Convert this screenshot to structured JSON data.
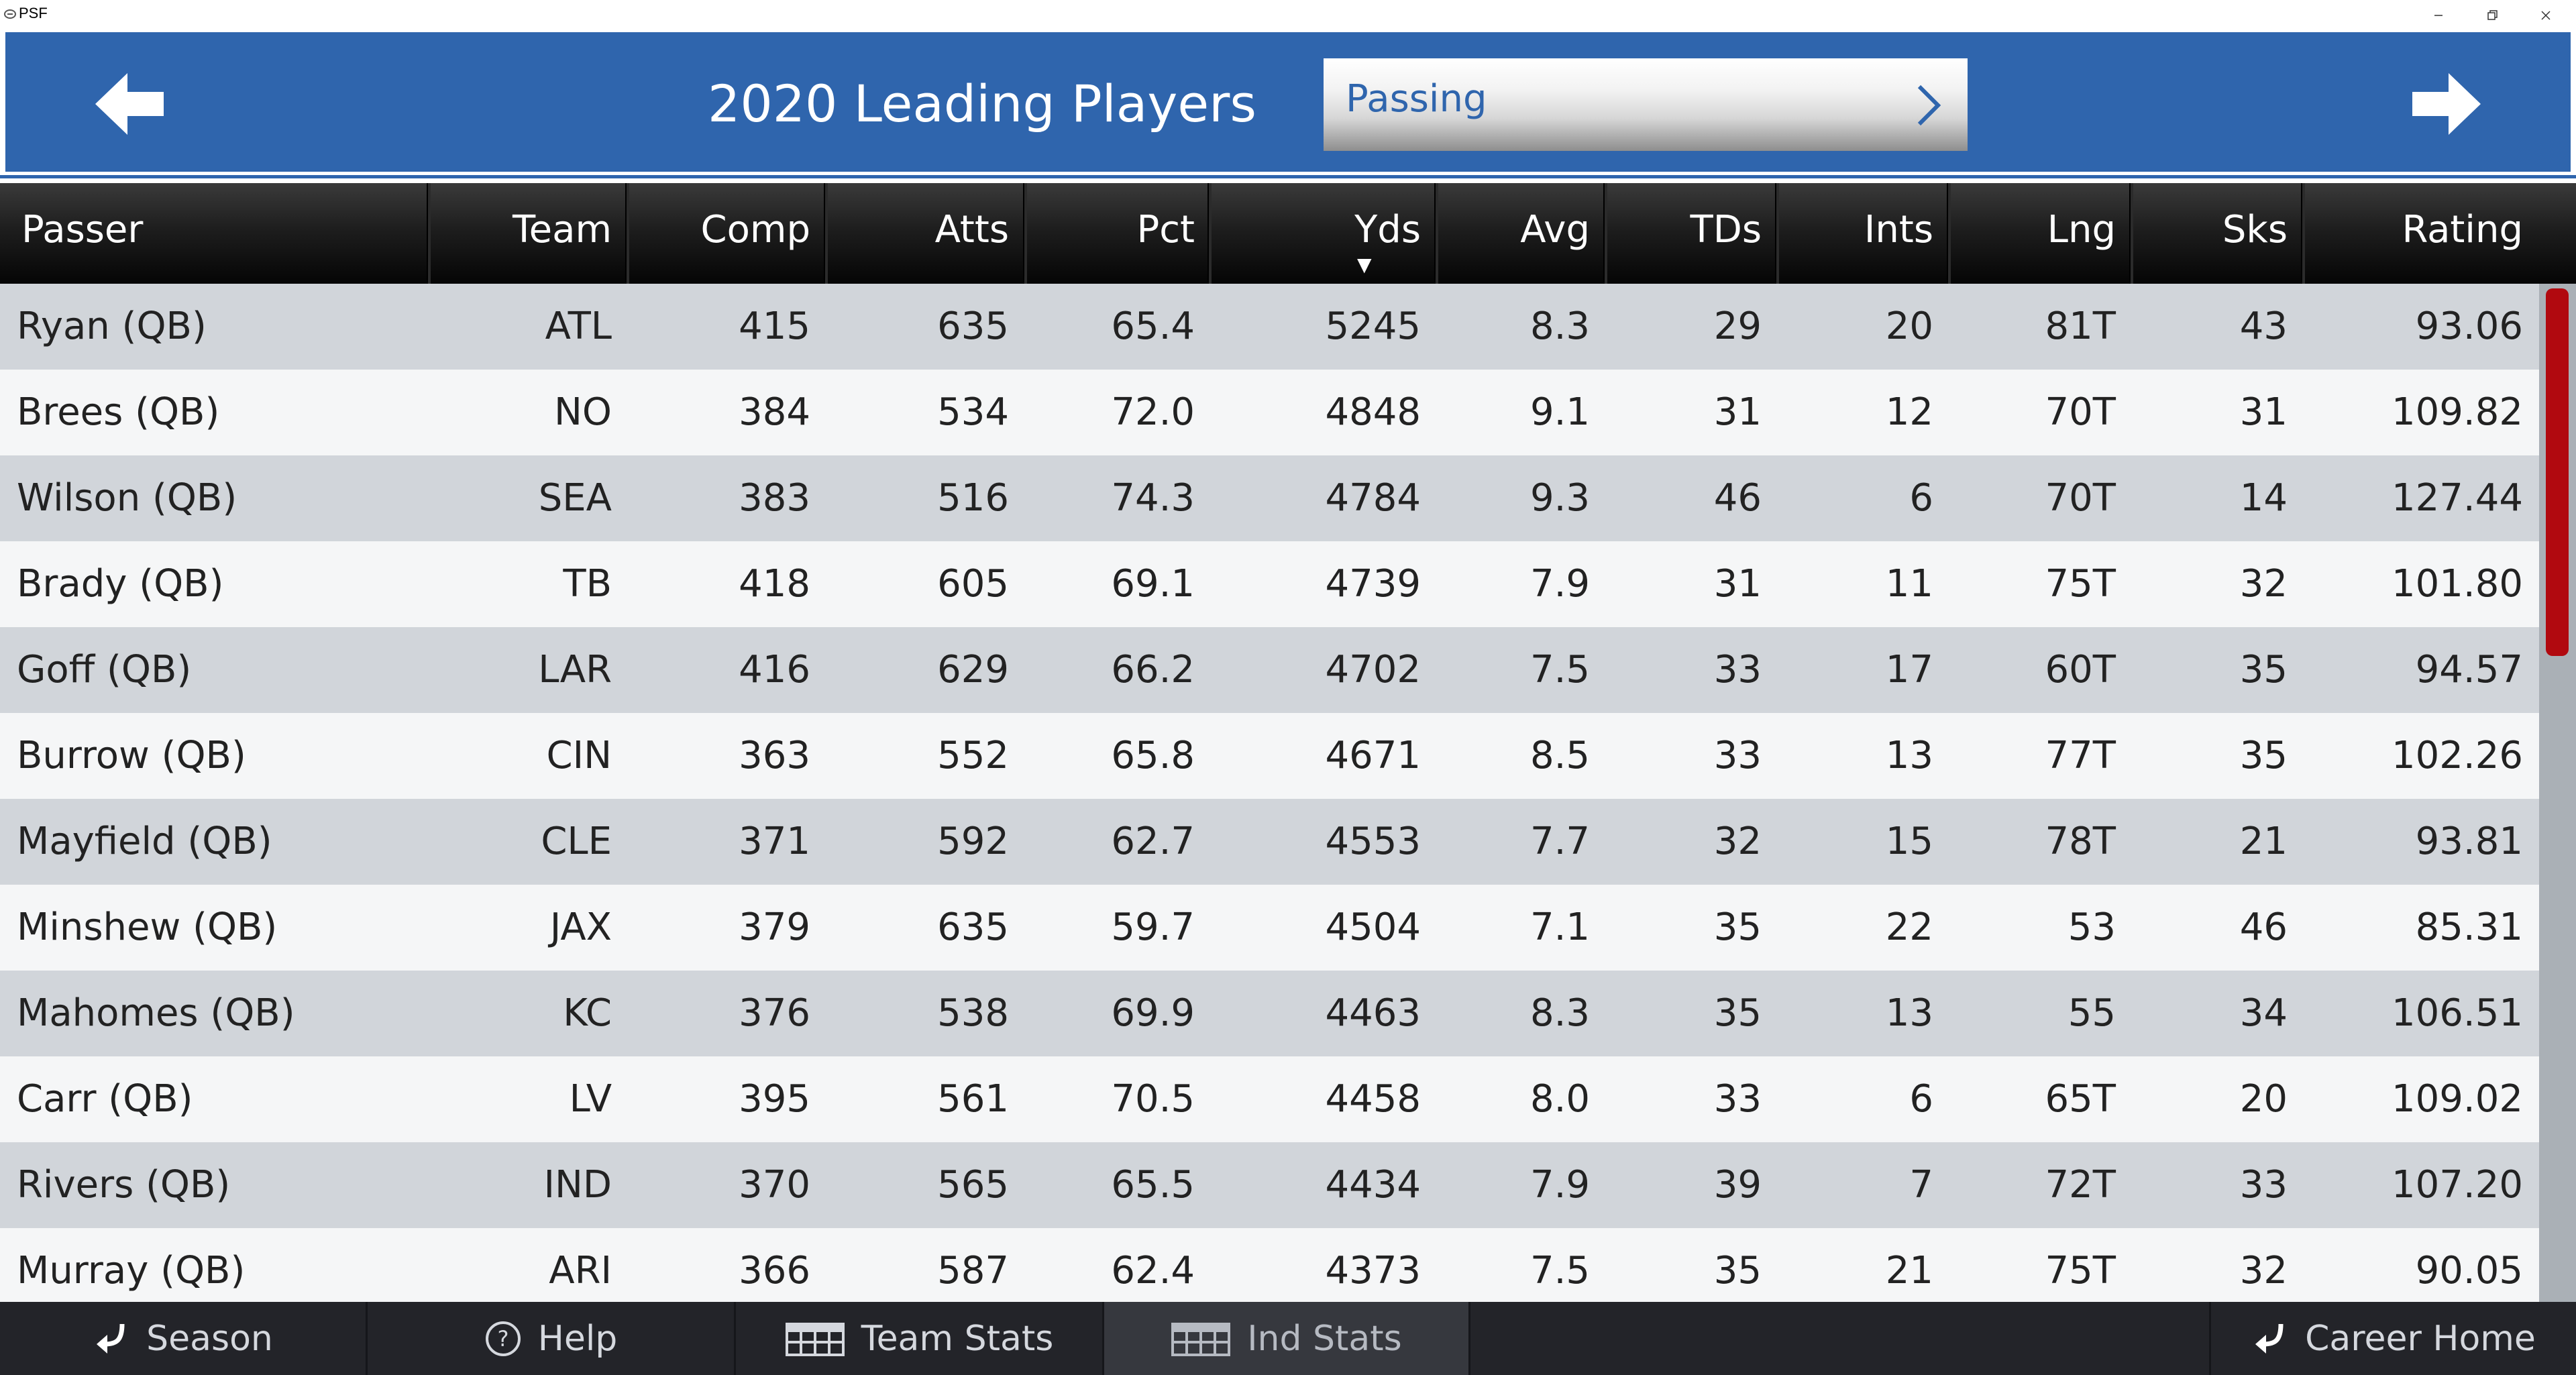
{
  "window": {
    "title": "PSF",
    "controls": [
      "minimize-icon",
      "restore-icon",
      "close-icon"
    ]
  },
  "header": {
    "title": "2020 Leading Players",
    "category": "Passing",
    "prev_icon": "arrow-left-icon",
    "next_icon": "arrow-right-icon",
    "background_color": "#2f65ad"
  },
  "table": {
    "columns": [
      "Passer",
      "Team",
      "Comp",
      "Atts",
      "Pct",
      "Yds",
      "Avg",
      "TDs",
      "Ints",
      "Lng",
      "Sks",
      "Rating"
    ],
    "sorted_by": "Yds",
    "sort_direction": "descending",
    "rows": [
      [
        "Ryan (QB)",
        "ATL",
        "415",
        "635",
        "65.4",
        "5245",
        "8.3",
        "29",
        "20",
        "81T",
        "43",
        "93.06"
      ],
      [
        "Brees (QB)",
        "NO",
        "384",
        "534",
        "72.0",
        "4848",
        "9.1",
        "31",
        "12",
        "70T",
        "31",
        "109.82"
      ],
      [
        "Wilson (QB)",
        "SEA",
        "383",
        "516",
        "74.3",
        "4784",
        "9.3",
        "46",
        "6",
        "70T",
        "14",
        "127.44"
      ],
      [
        "Brady (QB)",
        "TB",
        "418",
        "605",
        "69.1",
        "4739",
        "7.9",
        "31",
        "11",
        "75T",
        "32",
        "101.80"
      ],
      [
        "Goff (QB)",
        "LAR",
        "416",
        "629",
        "66.2",
        "4702",
        "7.5",
        "33",
        "17",
        "60T",
        "35",
        "94.57"
      ],
      [
        "Burrow (QB)",
        "CIN",
        "363",
        "552",
        "65.8",
        "4671",
        "8.5",
        "33",
        "13",
        "77T",
        "35",
        "102.26"
      ],
      [
        "Mayfield (QB)",
        "CLE",
        "371",
        "592",
        "62.7",
        "4553",
        "7.7",
        "32",
        "15",
        "78T",
        "21",
        "93.81"
      ],
      [
        "Minshew (QB)",
        "JAX",
        "379",
        "635",
        "59.7",
        "4504",
        "7.1",
        "35",
        "22",
        "53",
        "46",
        "85.31"
      ],
      [
        "Mahomes (QB)",
        "KC",
        "376",
        "538",
        "69.9",
        "4463",
        "8.3",
        "35",
        "13",
        "55",
        "34",
        "106.51"
      ],
      [
        "Carr (QB)",
        "LV",
        "395",
        "561",
        "70.5",
        "4458",
        "8.0",
        "33",
        "6",
        "65T",
        "20",
        "109.02"
      ],
      [
        "Rivers (QB)",
        "IND",
        "370",
        "565",
        "65.5",
        "4434",
        "7.9",
        "39",
        "7",
        "72T",
        "33",
        "107.20"
      ],
      [
        "Murray (QB)",
        "ARI",
        "366",
        "587",
        "62.4",
        "4373",
        "7.5",
        "35",
        "21",
        "75T",
        "32",
        "90.05"
      ]
    ]
  },
  "scrollbar": {
    "thumb_color": "#b1090f"
  },
  "footer": {
    "buttons": [
      {
        "label": "Season",
        "icon": "return-arrow-icon",
        "active": false
      },
      {
        "label": "Help",
        "icon": "help-circle-icon",
        "active": false
      },
      {
        "label": "Team Stats",
        "icon": "stats-table-icon",
        "active": false
      },
      {
        "label": "Ind Stats",
        "icon": "stats-table-icon",
        "active": true
      },
      {
        "label": "Career Home",
        "icon": "return-arrow-icon",
        "active": false
      }
    ]
  }
}
